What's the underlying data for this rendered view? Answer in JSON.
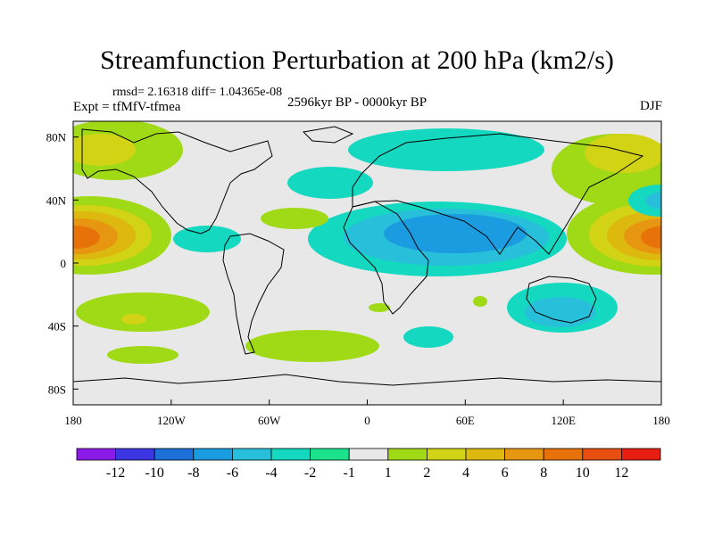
{
  "header": {
    "title": "Streamfunction Perturbation at 200 hPa (km2/s)",
    "stats": "rmsd= 2.16318 diff= 1.04365e-08",
    "experiment": "Expt = tfMfV-tfmea",
    "period": "2596kyr BP - 0000kyr BP",
    "season": "DJF"
  },
  "axes": {
    "lon_labels": [
      "180",
      "120W",
      "60W",
      "0",
      "60E",
      "120E",
      "180"
    ],
    "lat_labels": [
      "80N",
      "40N",
      "0",
      "40S",
      "80S"
    ]
  },
  "colorbar": {
    "colors": [
      "#8b1ae8",
      "#3c36e2",
      "#1c70d8",
      "#1c9ce0",
      "#27bfd9",
      "#14d8c0",
      "#1ce28c",
      "#e8e8e8",
      "#a0d916",
      "#d2d315",
      "#ddb80e",
      "#e69610",
      "#e8720a",
      "#e84e10",
      "#e81e14"
    ],
    "labels": [
      "-12",
      "-10",
      "-8",
      "-6",
      "-4",
      "-2",
      "-1",
      "1",
      "2",
      "4",
      "6",
      "8",
      "10",
      "12"
    ]
  },
  "chart_data": {
    "type": "filled-contour-map",
    "title": "Streamfunction Perturbation at 200 hPa (km2/s)",
    "projection": "cylindrical equidistant",
    "lon_range": [
      -180,
      180
    ],
    "lat_range": [
      -90,
      90
    ],
    "contour_levels": [
      -12,
      -10,
      -8,
      -6,
      -4,
      -2,
      -1,
      1,
      2,
      4,
      6,
      8,
      10,
      12
    ],
    "features": [
      {
        "name": "central Pacific positive maximum",
        "lon": -175,
        "lat": 17,
        "value": 11
      },
      {
        "name": "western Pacific positive maximum",
        "lon": 178,
        "lat": 17,
        "value": 10
      },
      {
        "name": "Asia negative minimum",
        "lon": 60,
        "lat": 25,
        "value": -5
      },
      {
        "name": "North Atlantic negative",
        "lon": -30,
        "lat": 48,
        "value": -2
      },
      {
        "name": "Arctic negative",
        "lon": 60,
        "lat": 68,
        "value": -2
      },
      {
        "name": "Australia negative",
        "lon": 125,
        "lat": -30,
        "value": -3
      },
      {
        "name": "North Pacific positive",
        "lon": -160,
        "lat": 65,
        "value": 3
      },
      {
        "name": "East Asia positive",
        "lon": 145,
        "lat": 55,
        "value": 3
      },
      {
        "name": "Southern Atlantic positive",
        "lon": -45,
        "lat": -45,
        "value": 2
      },
      {
        "name": "Southern Pacific positive",
        "lon": -140,
        "lat": -30,
        "value": 2
      }
    ]
  }
}
